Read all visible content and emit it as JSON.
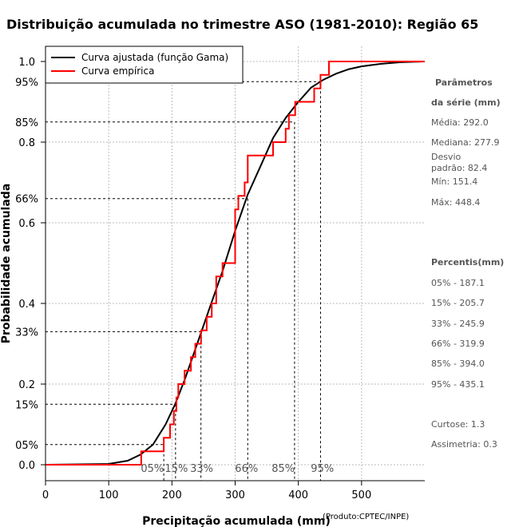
{
  "chart_data": {
    "type": "line",
    "title": "Distribuição acumulada no trimestre ASO (1981-2010): Região 65",
    "xlabel": "Precipitação acumulada (mm)",
    "ylabel": "Probabilidade acumulada",
    "credit": "(Produto:CPTEC/INPE)",
    "xlim": [
      0,
      600
    ],
    "ylim": [
      0,
      1
    ],
    "x_ticks": [
      0,
      100,
      200,
      300,
      400,
      500
    ],
    "y_ticks": [
      0.0,
      0.2,
      0.4,
      0.6,
      0.8,
      1.0
    ],
    "y_tick_labels": [
      "0.0",
      "0.2",
      "0.4",
      "0.6",
      "0.8",
      "1.0"
    ],
    "grid": true,
    "legend": {
      "position": "top-left",
      "entries": [
        {
          "label": "Curva ajustada (função Gama)",
          "color": "#000000"
        },
        {
          "label": "Curva empírica",
          "color": "#ff0000"
        }
      ]
    },
    "fitted_curve": {
      "name": "Curva ajustada (função Gama)",
      "color": "#000000",
      "x": [
        0,
        100,
        130,
        150,
        170,
        190,
        205,
        220,
        240,
        260,
        280,
        300,
        320,
        340,
        360,
        380,
        400,
        420,
        440,
        460,
        480,
        500,
        530,
        560,
        600
      ],
      "y": [
        0.0,
        0.002,
        0.01,
        0.025,
        0.05,
        0.1,
        0.15,
        0.21,
        0.3,
        0.39,
        0.48,
        0.58,
        0.67,
        0.74,
        0.81,
        0.86,
        0.9,
        0.935,
        0.955,
        0.97,
        0.981,
        0.988,
        0.994,
        0.998,
        1.0
      ]
    },
    "empirical_curve": {
      "name": "Curva empírica",
      "color": "#ff0000",
      "step_x": [
        151.4,
        187.1,
        197,
        203,
        207,
        210,
        220,
        230,
        237,
        246,
        255,
        263,
        270,
        280,
        300,
        305,
        315,
        320,
        335,
        360,
        380,
        385,
        395,
        425,
        435,
        448.4,
        600
      ],
      "step_y": [
        0.033,
        0.067,
        0.1,
        0.133,
        0.167,
        0.2,
        0.233,
        0.267,
        0.3,
        0.333,
        0.367,
        0.4,
        0.467,
        0.5,
        0.633,
        0.667,
        0.7,
        0.767,
        0.767,
        0.8,
        0.833,
        0.867,
        0.9,
        0.933,
        0.967,
        1.0,
        1.0
      ]
    },
    "percentile_lines": [
      {
        "label": "05%",
        "x": 187.1,
        "y": 0.05
      },
      {
        "label": "15%",
        "x": 205.7,
        "y": 0.15
      },
      {
        "label": "33%",
        "x": 245.9,
        "y": 0.33
      },
      {
        "label": "66%",
        "x": 319.9,
        "y": 0.66
      },
      {
        "label": "85%",
        "x": 394.0,
        "y": 0.85
      },
      {
        "label": "95%",
        "x": 435.1,
        "y": 0.95
      }
    ],
    "x_percentile_labels": [
      {
        "label": "05%",
        "x": 169
      },
      {
        "label": "15%",
        "x": 207
      },
      {
        "label": "33%",
        "x": 247
      },
      {
        "label": "66%",
        "x": 318
      },
      {
        "label": "85%",
        "x": 376
      },
      {
        "label": "95%",
        "x": 438
      }
    ]
  },
  "sidebar": {
    "params_heading_1": "Parâmetros",
    "params_heading_2": "da série (mm)",
    "media": "Média: 292.0",
    "mediana": "Mediana: 277.9",
    "desvio_1": "Desvio",
    "desvio_2": "padrão: 82.4",
    "min": "Mín: 151.4",
    "max": "Máx: 448.4",
    "percentis_heading": "Percentis(mm)",
    "p05": "05% - 187.1",
    "p15": "15% - 205.7",
    "p33": "33% - 245.9",
    "p66": "66% - 319.9",
    "p85": "85% - 394.0",
    "p95": "95% - 435.1",
    "curtose": "Curtose: 1.3",
    "assimetria": "Assimetria: 0.3"
  }
}
